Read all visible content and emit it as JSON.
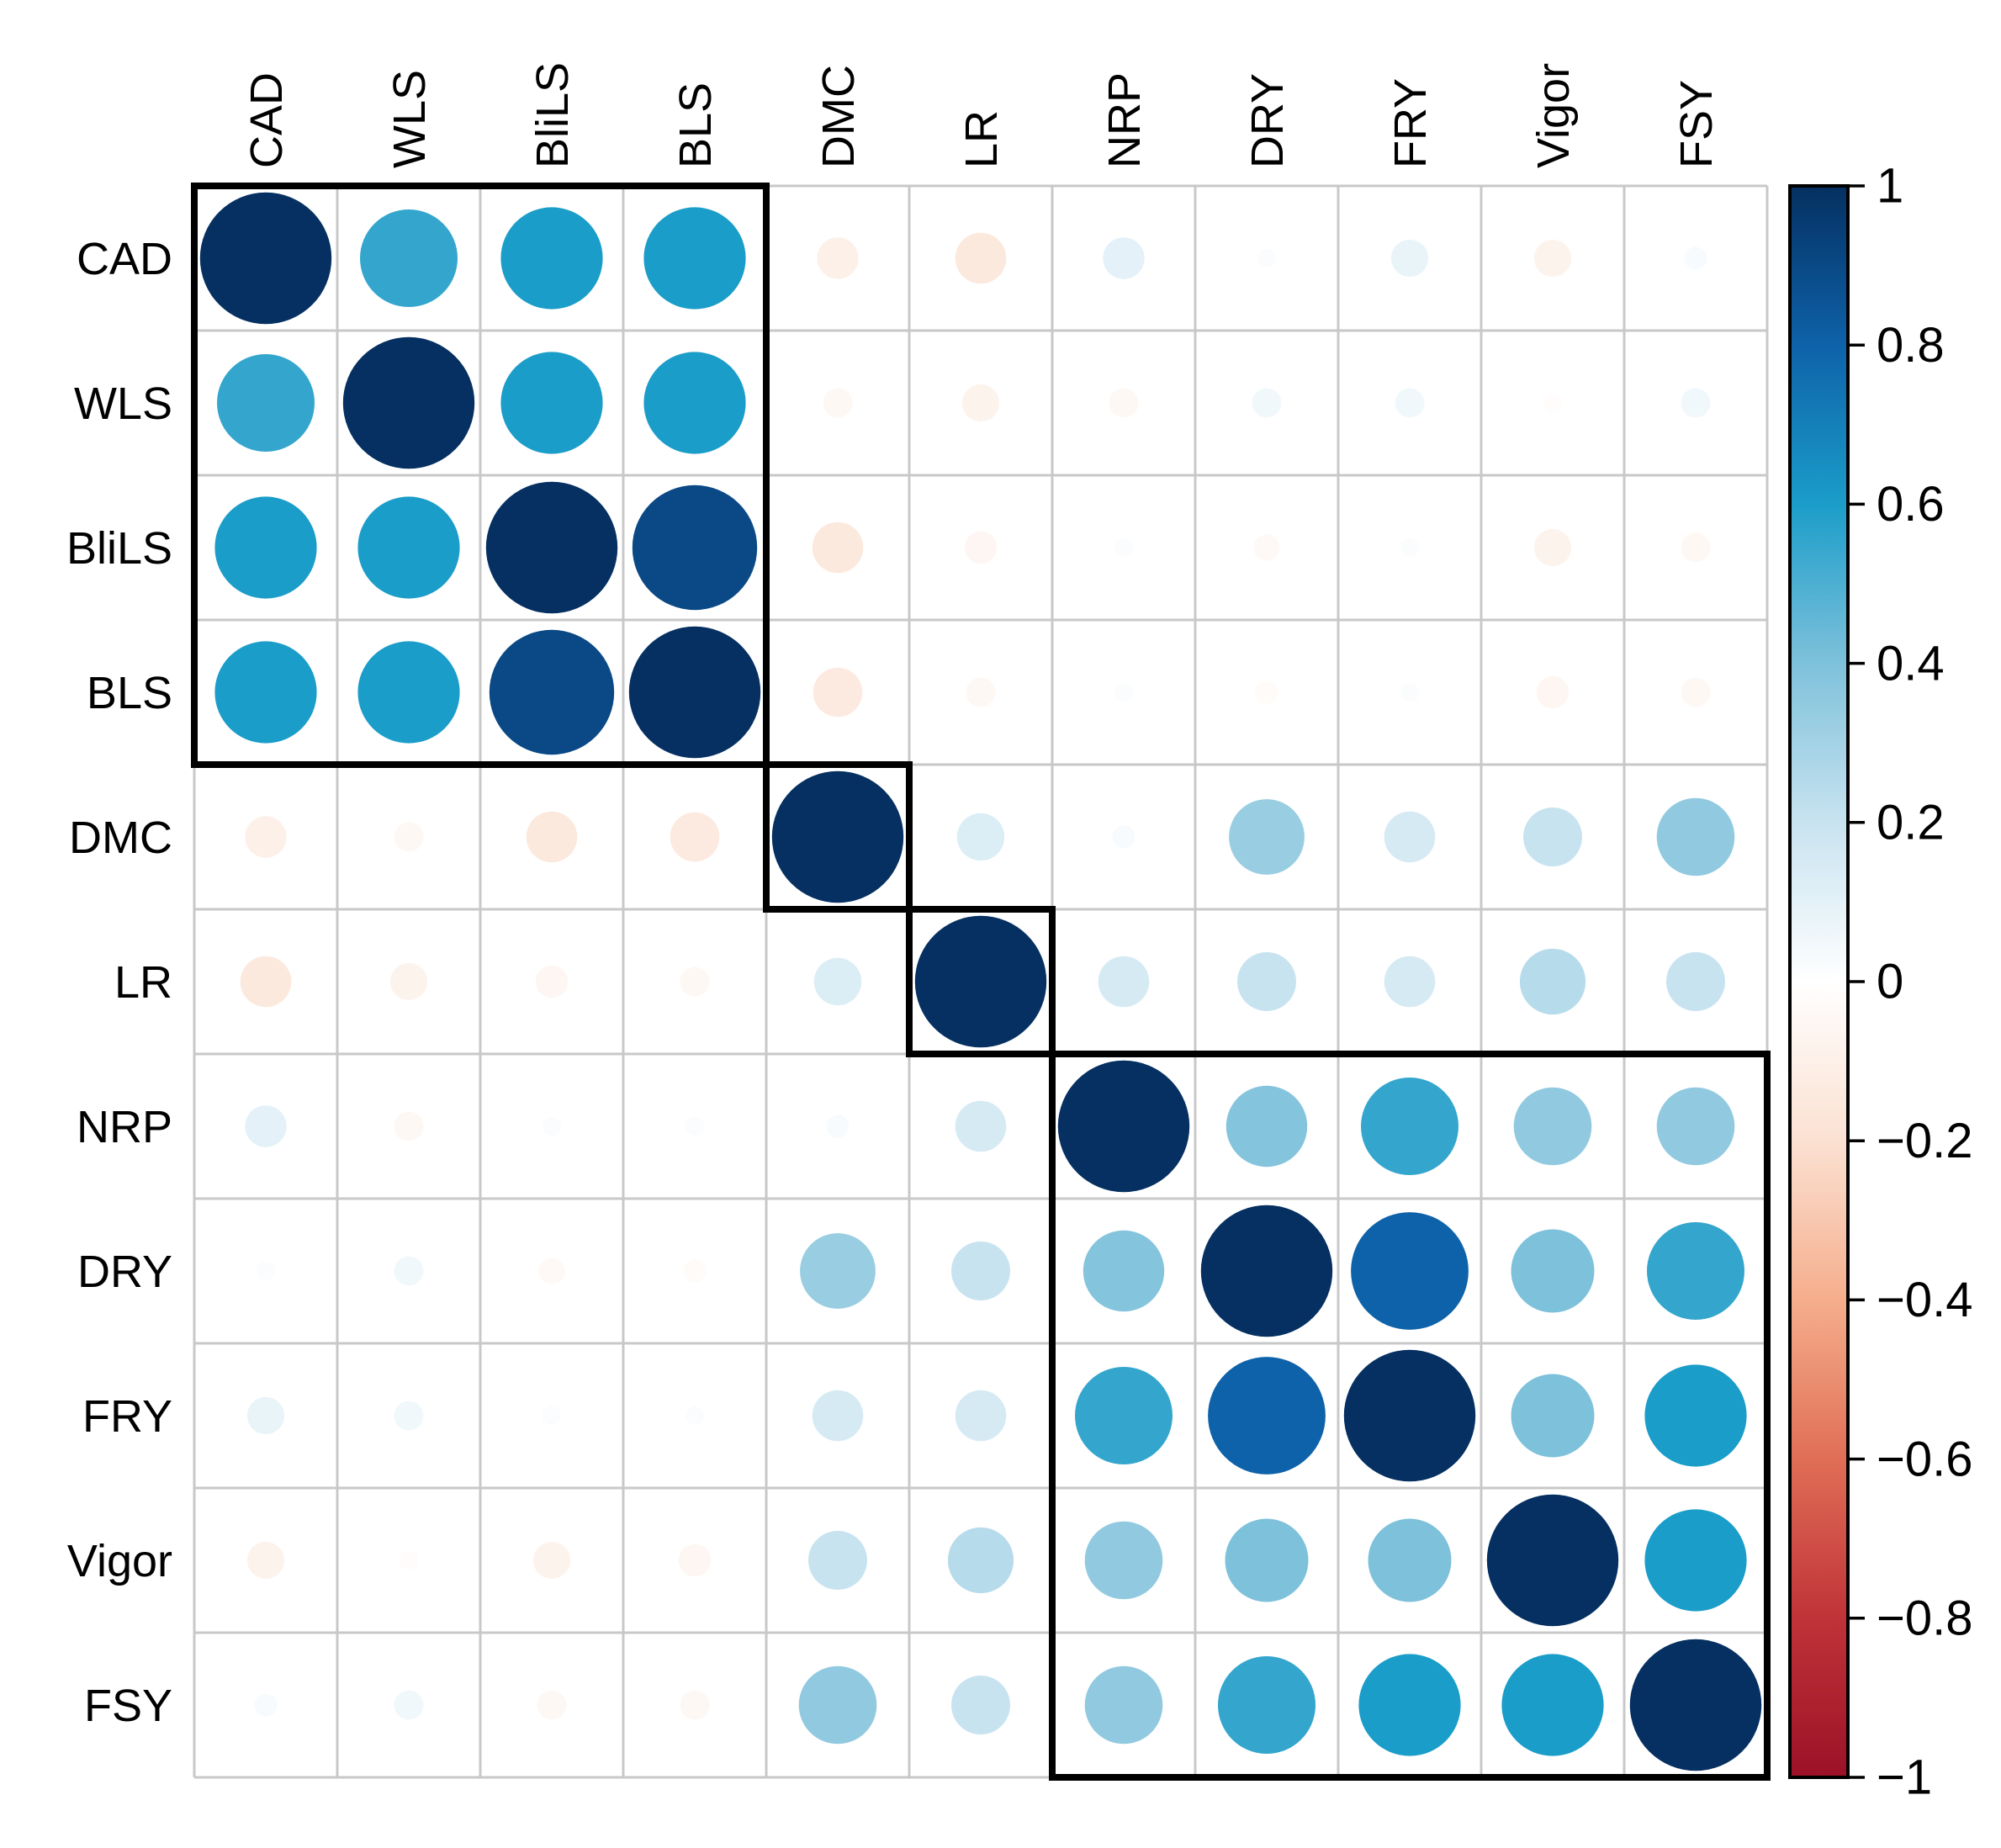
{
  "figure": {
    "background": "#FFFFFF",
    "description": "Correlation matrix bubble plot with hierarchical cluster boxes and vertical color scale"
  },
  "chart_data": {
    "type": "heatmap",
    "subtype": "correlation-matrix-circles",
    "variables": [
      "CAD",
      "WLS",
      "BliLS",
      "BLS",
      "DMC",
      "LR",
      "NRP",
      "DRY",
      "FRY",
      "Vigor",
      "FSY"
    ],
    "matrix": [
      [
        1.0,
        0.55,
        0.6,
        0.6,
        -0.1,
        -0.15,
        0.1,
        0.02,
        0.08,
        -0.08,
        0.03
      ],
      [
        0.55,
        1.0,
        0.6,
        0.6,
        -0.05,
        -0.08,
        -0.05,
        0.05,
        0.05,
        -0.02,
        0.05
      ],
      [
        0.6,
        0.6,
        1.0,
        0.9,
        -0.15,
        -0.06,
        0.02,
        -0.04,
        0.02,
        -0.08,
        -0.05
      ],
      [
        0.6,
        0.6,
        0.9,
        1.0,
        -0.14,
        -0.05,
        0.02,
        -0.03,
        0.02,
        -0.06,
        -0.05
      ],
      [
        -0.1,
        -0.05,
        -0.15,
        -0.14,
        1.0,
        0.13,
        0.03,
        0.33,
        0.15,
        0.2,
        0.35
      ],
      [
        -0.15,
        -0.08,
        -0.06,
        -0.05,
        0.13,
        1.0,
        0.15,
        0.2,
        0.15,
        0.25,
        0.2
      ],
      [
        0.1,
        -0.05,
        0.02,
        0.02,
        0.03,
        0.15,
        1.0,
        0.38,
        0.55,
        0.35,
        0.35
      ],
      [
        0.02,
        0.05,
        -0.04,
        -0.03,
        0.33,
        0.2,
        0.38,
        1.0,
        0.8,
        0.4,
        0.55
      ],
      [
        0.08,
        0.05,
        0.02,
        0.02,
        0.15,
        0.15,
        0.55,
        0.8,
        1.0,
        0.4,
        0.6
      ],
      [
        -0.08,
        -0.02,
        -0.08,
        -0.06,
        0.2,
        0.25,
        0.35,
        0.4,
        0.4,
        1.0,
        0.6
      ],
      [
        0.03,
        0.05,
        -0.05,
        -0.05,
        0.35,
        0.2,
        0.35,
        0.55,
        0.6,
        0.6,
        1.0
      ]
    ],
    "clusters": [
      {
        "start": 0,
        "size": 4
      },
      {
        "start": 4,
        "size": 1
      },
      {
        "start": 5,
        "size": 1
      },
      {
        "start": 6,
        "size": 5
      }
    ],
    "colorbar": {
      "min": -1,
      "max": 1,
      "position": "right",
      "tick_values": [
        1,
        0.8,
        0.6,
        0.4,
        0.2,
        0,
        -0.2,
        -0.4,
        -0.6,
        -0.8,
        -1
      ],
      "tick_labels": [
        "1",
        "0.8",
        "0.6",
        "0.4",
        "0.2",
        "0",
        "−0.2",
        "−0.4",
        "−0.6",
        "−0.8",
        "−1"
      ]
    },
    "colormap_stops": [
      {
        "v": -1.0,
        "color": "#9C1127"
      },
      {
        "v": -0.8,
        "color": "#C03338"
      },
      {
        "v": -0.6,
        "color": "#E06E56"
      },
      {
        "v": -0.4,
        "color": "#F5AE8C"
      },
      {
        "v": -0.2,
        "color": "#FBE1D2"
      },
      {
        "v": 0.0,
        "color": "#FFFFFF"
      },
      {
        "v": 0.2,
        "color": "#C8E3F0"
      },
      {
        "v": 0.4,
        "color": "#7EC1DB"
      },
      {
        "v": 0.6,
        "color": "#1B9DC9"
      },
      {
        "v": 0.8,
        "color": "#0E62A9"
      },
      {
        "v": 1.0,
        "color": "#053061"
      }
    ],
    "grid": true
  },
  "style": {
    "grid_color": "#C8C8C8",
    "outer_border_color": "#B4B4B4",
    "cluster_box_color": "#000000",
    "label_color": "#000000",
    "positive_accent": "#053061",
    "negative_accent": "#9C1127"
  }
}
